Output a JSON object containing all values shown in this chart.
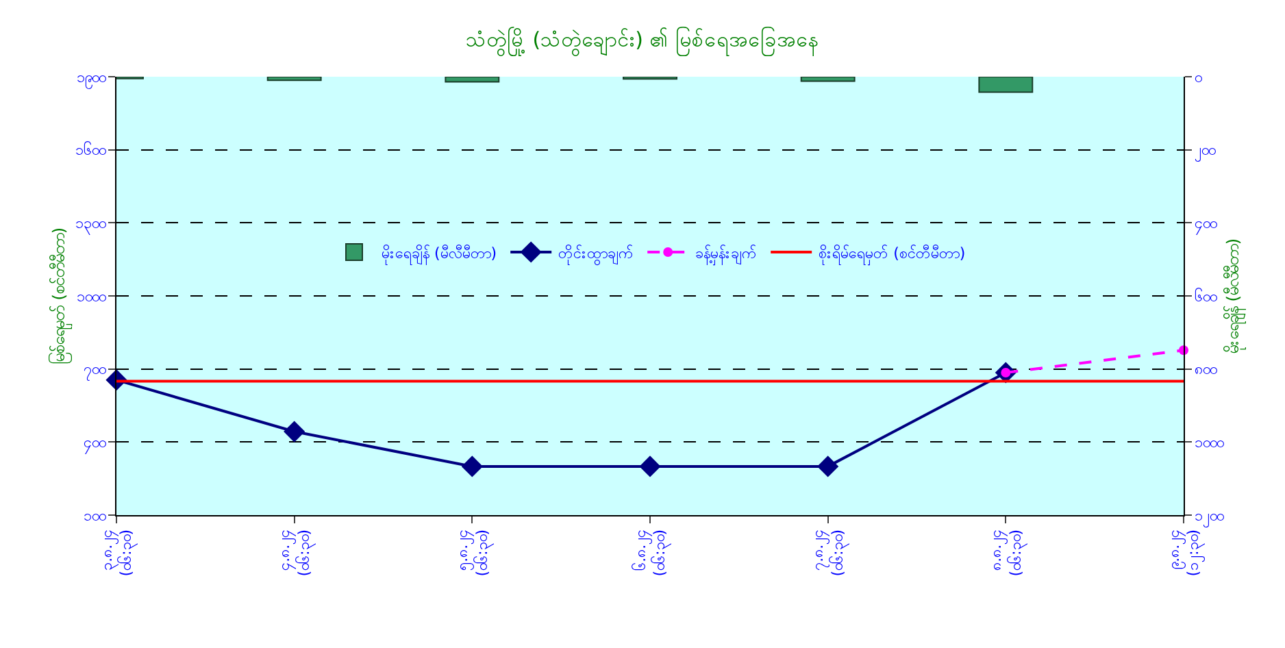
{
  "chart_data": {
    "type": "line",
    "title": "သံတွဲမြို့ (သံတွဲချောင်း) ၏ မြစ်ရေအခြေအနေ",
    "ylabel": "မြစ်ရေမှတ် (စင်တီမီတာ)",
    "y2label": "မိုးရေချိန် (မီလီမီတာ)",
    "categories": [
      "၃.၈.၂၄ (ဝ၆:၃၀)",
      "၄.၈.၂၄ (ဝ၆:၃၀)",
      "၅.၈.၂၄ (ဝ၆:၃၀)",
      "၆.၈.၂၄ (ဝ၆:၃၀)",
      "၇.၈.၂၄ (ဝ၆:၃၀)",
      "၈.၈.၂၄ (ဝ၆:၃၀)",
      "၉.၈.၂၄ (၁၂:၃၀)"
    ],
    "series": [
      {
        "name": "မိုးရေချိန် (မီလီမီတာ)",
        "type": "bar",
        "axis": "y2",
        "color": "#339966",
        "values": [
          5,
          10,
          14,
          6,
          12,
          42,
          null
        ]
      },
      {
        "name": "တိုင်းထွာချက်",
        "color": "#000080",
        "marker": "diamond",
        "line_style": "solid",
        "values": [
          655,
          443,
          300,
          300,
          300,
          685,
          null
        ]
      },
      {
        "name": "ခန့်မှန်းချက်",
        "color": "#ff00ff",
        "marker": "circle",
        "line_style": "dashed",
        "values": [
          null,
          null,
          null,
          null,
          null,
          685,
          777
        ]
      },
      {
        "name": "စိုးရိမ်ရေမှတ် (စင်တီမီတာ)",
        "color": "#ff0000",
        "marker": "none",
        "line_style": "solid",
        "values": [
          650,
          650,
          650,
          650,
          650,
          650,
          650
        ]
      }
    ],
    "ylim": [
      100,
      1900
    ],
    "yticks": [
      {
        "value": 100,
        "label": "၁၀၀"
      },
      {
        "value": 400,
        "label": "၄၀၀"
      },
      {
        "value": 700,
        "label": "၇၀၀"
      },
      {
        "value": 1000,
        "label": "၁၀၀၀"
      },
      {
        "value": 1300,
        "label": "၁၃၀၀"
      },
      {
        "value": 1600,
        "label": "၁၆၀၀"
      },
      {
        "value": 1900,
        "label": "၁၉၀၀"
      }
    ],
    "y2lim": [
      1200,
      0
    ],
    "y2ticks": [
      {
        "value": 0,
        "label": "၀"
      },
      {
        "value": 200,
        "label": "၂၀၀"
      },
      {
        "value": 400,
        "label": "၄၀၀"
      },
      {
        "value": 600,
        "label": "၆၀၀"
      },
      {
        "value": 800,
        "label": "၈၀၀"
      },
      {
        "value": 1000,
        "label": "၁၀၀၀"
      },
      {
        "value": 1200,
        "label": "၁၂၀၀"
      }
    ],
    "grid": "y",
    "legend": "center"
  }
}
